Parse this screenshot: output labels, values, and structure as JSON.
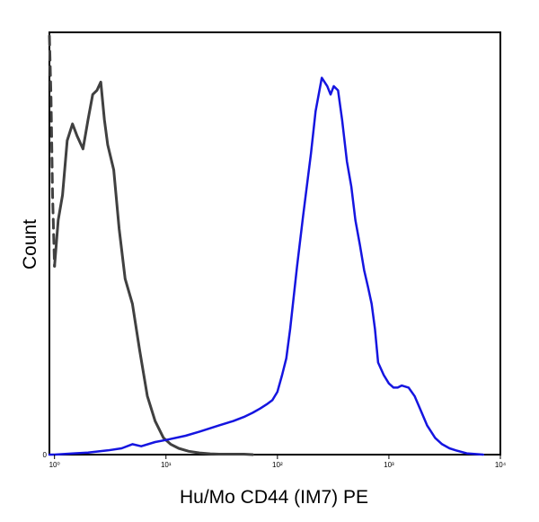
{
  "chart_data": {
    "type": "line",
    "title": "",
    "xlabel": "Hu/Mo CD44 (IM7) PE",
    "ylabel": "Count",
    "x_scale": "log",
    "xlim": [
      0.9,
      10000
    ],
    "ylim": [
      0,
      100
    ],
    "x_ticks": [
      {
        "value": 1,
        "label": "10⁰"
      },
      {
        "value": 10,
        "label": "10¹"
      },
      {
        "value": 100,
        "label": "10²"
      },
      {
        "value": 1000,
        "label": "10³"
      },
      {
        "value": 10000,
        "label": "10⁴"
      }
    ],
    "y_ticks": [
      {
        "value": 0,
        "label": "0"
      }
    ],
    "grid": false,
    "series": [
      {
        "color": "#404040",
        "style": "solid",
        "x": [
          1.0,
          1.08,
          1.18,
          1.3,
          1.45,
          1.6,
          1.8,
          2.0,
          2.2,
          2.4,
          2.6,
          2.8,
          3.0,
          3.4,
          3.8,
          4.3,
          5.0,
          5.8,
          6.8,
          8.0,
          9.5,
          11.0,
          13.0,
          16.0,
          20.0,
          25.0,
          30.0,
          40.0,
          50.0,
          60.0
        ],
        "y": [
          45,
          56,
          62,
          75,
          79,
          76,
          73,
          80,
          86,
          87,
          89,
          80,
          74,
          68,
          54,
          42,
          36,
          25,
          14,
          8,
          4,
          2.5,
          1.5,
          0.8,
          0.4,
          0.2,
          0.1,
          0.1,
          0.1,
          0
        ]
      },
      {
        "color": "#404040",
        "style": "dashed",
        "x": [
          0.9,
          0.93,
          0.96,
          1.0
        ],
        "y": [
          100,
          85,
          62,
          45
        ]
      },
      {
        "color": "#1515e0",
        "style": "solid",
        "x": [
          0.9,
          1.0,
          1.5,
          2.0,
          3.0,
          4.0,
          5.0,
          6.0,
          8.0,
          10.0,
          15.0,
          20.0,
          30.0,
          40.0,
          50.0,
          60.0,
          70.0,
          80.0,
          90.0,
          100,
          110,
          120,
          130,
          150,
          170,
          200,
          220,
          250,
          280,
          300,
          320,
          350,
          380,
          420,
          460,
          500,
          550,
          600,
          650,
          700,
          750,
          800,
          900,
          1000,
          1100,
          1200,
          1300,
          1500,
          1700,
          1900,
          2200,
          2600,
          3000,
          3500,
          4000,
          5000,
          7000
        ],
        "y": [
          0,
          0,
          0.3,
          0.5,
          1,
          1.5,
          2.5,
          2,
          3,
          3.5,
          4.5,
          5.5,
          7,
          8,
          9,
          10,
          11,
          12,
          13,
          15,
          19,
          23,
          30,
          45,
          57,
          72,
          82,
          90,
          88,
          86,
          88,
          87,
          80,
          70,
          64,
          56,
          50,
          44,
          40,
          36,
          30,
          22,
          19,
          17,
          16,
          16,
          16.5,
          16,
          14,
          11,
          7,
          4,
          2.5,
          1.5,
          1,
          0.3,
          0
        ]
      }
    ]
  }
}
